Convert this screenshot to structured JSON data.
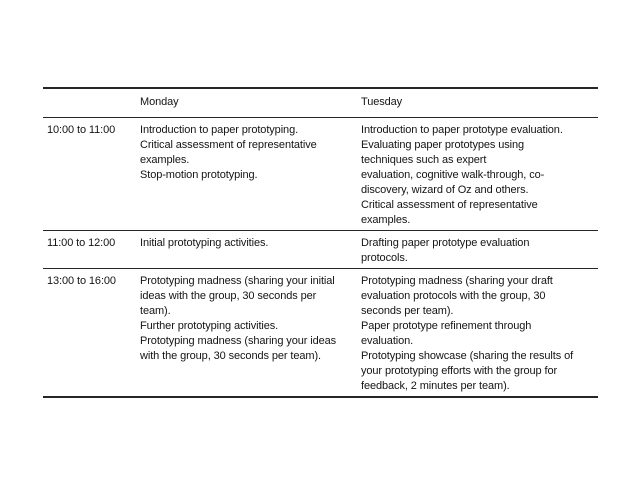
{
  "slide": {
    "background": "#ffffff",
    "border_color": "#262626",
    "text_color": "#141414"
  },
  "table": {
    "columns": [
      "",
      "Monday",
      "Tuesday"
    ],
    "rows": [
      {
        "time": "10:00 to 11:00",
        "monday": [
          "Introduction to paper prototyping.",
          "Critical assessment of representative",
          "examples.",
          "Stop-motion prototyping."
        ],
        "tuesday": [
          "Introduction to paper prototype evaluation.",
          "Evaluating paper prototypes using",
          "techniques such as expert",
          "evaluation, cognitive walk-through, co-",
          "discovery, wizard of Oz and others.",
          "Critical assessment of representative",
          "examples."
        ]
      },
      {
        "time": "11:00 to 12:00",
        "monday": [
          "Initial prototyping activities."
        ],
        "tuesday": [
          "Drafting paper prototype evaluation",
          "protocols."
        ]
      },
      {
        "time": "13:00 to 16:00",
        "monday": [
          "Prototyping madness (sharing your initial",
          "ideas with the group, 30 seconds per",
          "team).",
          "Further prototyping activities.",
          "Prototyping madness (sharing your ideas",
          "with the group, 30 seconds per team)."
        ],
        "tuesday": [
          "Prototyping madness (sharing your draft",
          "evaluation protocols with the group, 30",
          "seconds per team).",
          "Paper prototype refinement through",
          "evaluation.",
          "Prototyping showcase (sharing the results of",
          "your prototyping efforts with the group for",
          "feedback, 2 minutes per team)."
        ]
      }
    ]
  }
}
